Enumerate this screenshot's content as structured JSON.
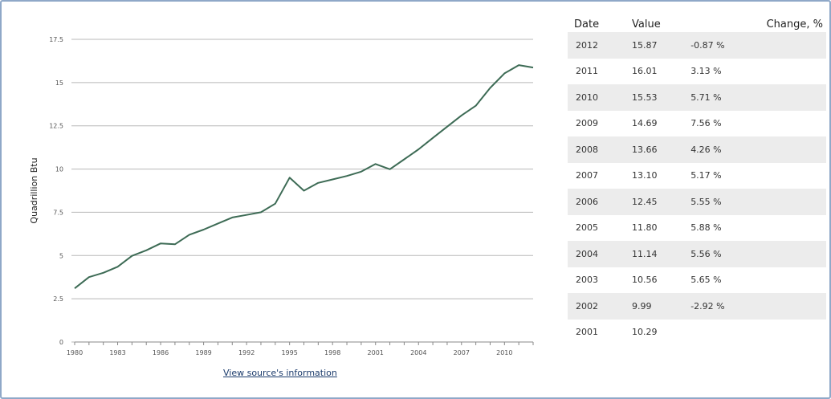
{
  "chart_data": {
    "type": "line",
    "xlabel": "",
    "ylabel": "Quadrillion Btu",
    "ylim": [
      0,
      17.5
    ],
    "xlim": [
      1980,
      2012
    ],
    "y_ticks": [
      "0",
      "2.5",
      "5",
      "7.5",
      "10",
      "12.5",
      "15",
      "17.5"
    ],
    "x_ticks": [
      "1980",
      "1983",
      "1986",
      "1989",
      "1992",
      "1995",
      "1998",
      "2001",
      "2004",
      "2007",
      "2010"
    ],
    "grid": true,
    "line_color": "#3d6b55",
    "series": [
      {
        "x": [
          1980,
          1981,
          1982,
          1983,
          1984,
          1985,
          1986,
          1987,
          1988,
          1989,
          1990,
          1991,
          1992,
          1993,
          1994,
          1995,
          1996,
          1997,
          1998,
          1999,
          2000,
          2001,
          2002,
          2003,
          2004,
          2005,
          2006,
          2007,
          2008,
          2009,
          2010,
          2011,
          2012
        ],
        "y": [
          3.1,
          3.75,
          4.0,
          4.35,
          4.98,
          5.3,
          5.7,
          5.65,
          6.2,
          6.5,
          6.85,
          7.2,
          7.35,
          7.5,
          8.0,
          9.5,
          8.75,
          9.2,
          9.4,
          9.6,
          9.85,
          10.29,
          9.99,
          10.56,
          11.14,
          11.8,
          12.45,
          13.1,
          13.66,
          14.69,
          15.53,
          16.01,
          15.87
        ]
      }
    ]
  },
  "source_link": "View source's information",
  "table": {
    "headers": {
      "date": "Date",
      "value": "Value",
      "change": "Change, %"
    },
    "rows": [
      {
        "date": "2012",
        "value": "15.87",
        "change": "-0.87 %"
      },
      {
        "date": "2011",
        "value": "16.01",
        "change": "3.13 %"
      },
      {
        "date": "2010",
        "value": "15.53",
        "change": "5.71 %"
      },
      {
        "date": "2009",
        "value": "14.69",
        "change": "7.56 %"
      },
      {
        "date": "2008",
        "value": "13.66",
        "change": "4.26 %"
      },
      {
        "date": "2007",
        "value": "13.10",
        "change": "5.17 %"
      },
      {
        "date": "2006",
        "value": "12.45",
        "change": "5.55 %"
      },
      {
        "date": "2005",
        "value": "11.80",
        "change": "5.88 %"
      },
      {
        "date": "2004",
        "value": "11.14",
        "change": "5.56 %"
      },
      {
        "date": "2003",
        "value": "10.56",
        "change": "5.65 %"
      },
      {
        "date": "2002",
        "value": "9.99",
        "change": "-2.92 %"
      },
      {
        "date": "2001",
        "value": "10.29",
        "change": ""
      }
    ]
  }
}
